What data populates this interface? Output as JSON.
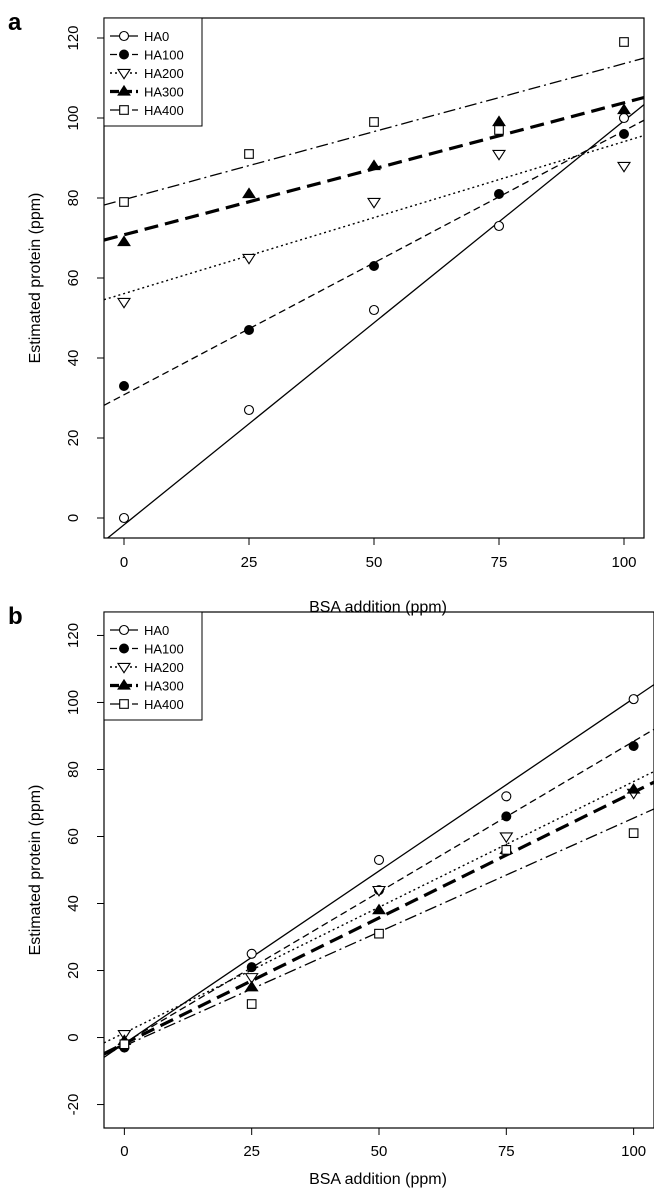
{
  "chart_data": [
    {
      "type": "scatter",
      "panel_label": "a",
      "xlabel": "BSA addition (ppm)",
      "ylabel": "Estimated protein (ppm)",
      "xlim": [
        -4,
        104
      ],
      "ylim": [
        -5,
        125
      ],
      "xticks": [
        0,
        25,
        50,
        75,
        100
      ],
      "yticks": [
        0,
        20,
        40,
        60,
        80,
        100,
        120
      ],
      "legend_position": "top-left",
      "x": [
        0,
        25,
        50,
        75,
        100
      ],
      "series": [
        {
          "name": "HA0",
          "marker": "open-circle",
          "line": "solid",
          "values": [
            0,
            27,
            52,
            73,
            100
          ],
          "fit": [
            -1.7,
            1.01
          ]
        },
        {
          "name": "HA100",
          "marker": "filled-circle",
          "line": "dashed",
          "values": [
            33,
            47,
            63,
            81,
            96
          ],
          "fit": [
            30.8,
            0.66
          ]
        },
        {
          "name": "HA200",
          "marker": "open-triangle-down",
          "line": "dotted",
          "values": [
            54,
            65,
            79,
            91,
            88
          ],
          "fit": [
            56.1,
            0.38
          ]
        },
        {
          "name": "HA300",
          "marker": "filled-triangle-up",
          "line": "thick-dashed",
          "values": [
            69,
            81,
            88,
            99,
            102
          ],
          "fit": [
            70.8,
            0.33
          ]
        },
        {
          "name": "HA400",
          "marker": "open-square",
          "line": "dash-dot",
          "values": [
            79,
            91,
            99,
            97,
            119
          ],
          "fit": [
            79.6,
            0.34
          ]
        }
      ]
    },
    {
      "type": "scatter",
      "panel_label": "b",
      "xlabel": "BSA addition (ppm)",
      "ylabel": "Estimated protein (ppm)",
      "xlim": [
        -4,
        104
      ],
      "ylim": [
        -27,
        127
      ],
      "xticks": [
        0,
        25,
        50,
        75,
        100
      ],
      "yticks": [
        -20,
        0,
        20,
        40,
        60,
        80,
        100,
        120
      ],
      "legend_position": "top-left",
      "x": [
        0,
        25,
        50,
        75,
        100
      ],
      "series": [
        {
          "name": "HA0",
          "marker": "open-circle",
          "line": "solid",
          "values": [
            -2,
            25,
            53,
            72,
            101
          ],
          "fit": [
            -1.8,
            1.03
          ]
        },
        {
          "name": "HA100",
          "marker": "filled-circle",
          "line": "dashed",
          "values": [
            -3,
            21,
            44,
            66,
            87
          ],
          "fit": [
            -1.6,
            0.9
          ]
        },
        {
          "name": "HA200",
          "marker": "open-triangle-down",
          "line": "dotted",
          "values": [
            1,
            18,
            44,
            60,
            73
          ],
          "fit": [
            1.4,
            0.75
          ]
        },
        {
          "name": "HA300",
          "marker": "filled-triangle-up",
          "line": "thick-dashed",
          "values": [
            -1,
            15,
            38,
            56,
            74
          ],
          "fit": [
            -1.8,
            0.75
          ]
        },
        {
          "name": "HA400",
          "marker": "open-square",
          "line": "dash-dot",
          "values": [
            -2,
            10,
            31,
            56,
            61
          ],
          "fit": [
            -2.5,
            0.68
          ]
        }
      ]
    }
  ]
}
